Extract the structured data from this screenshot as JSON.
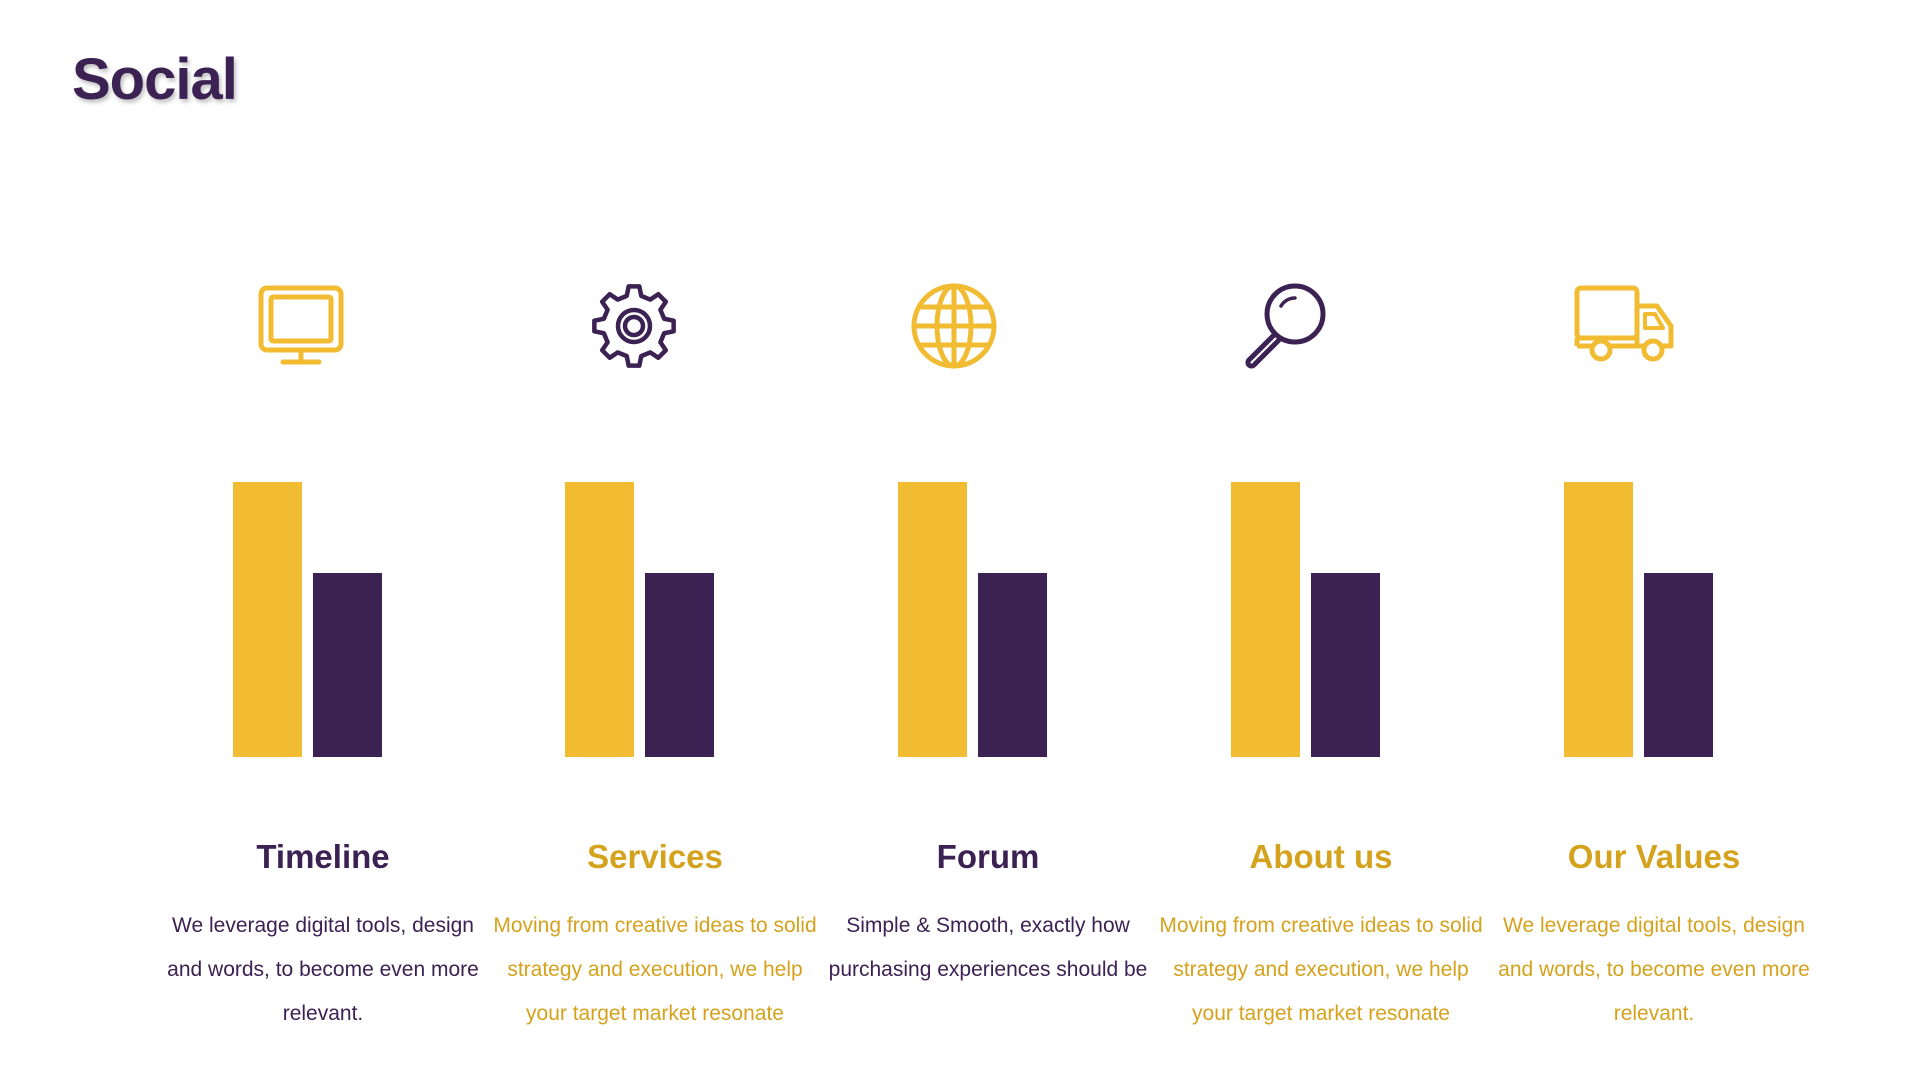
{
  "title": "Social",
  "colors": {
    "gold": "#f1bb32",
    "gold_text": "#d4a21c",
    "purple": "#3c2153"
  },
  "columns": [
    {
      "icon": "monitor-icon",
      "heading": "Timeline",
      "body": "We leverage digital tools, design and words, to become even more relevant.",
      "bar_levels": {
        "gold": 1.0,
        "purple": 0.67
      }
    },
    {
      "icon": "gear-icon",
      "heading": "Services",
      "body": "Moving from creative ideas to solid strategy and execution, we help your target market resonate",
      "bar_levels": {
        "gold": 1.0,
        "purple": 0.67
      }
    },
    {
      "icon": "globe-icon",
      "heading": "Forum",
      "body": "Simple & Smooth, exactly how purchasing experiences should be",
      "bar_levels": {
        "gold": 1.0,
        "purple": 0.67
      }
    },
    {
      "icon": "search-icon",
      "heading": "About us",
      "body": "Moving from creative ideas to solid strategy and execution, we help your target market resonate",
      "bar_levels": {
        "gold": 1.0,
        "purple": 0.67
      }
    },
    {
      "icon": "truck-icon",
      "heading": "Our Values",
      "body": "We leverage digital tools, design and words, to become even more relevant.",
      "bar_levels": {
        "gold": 1.0,
        "purple": 0.67
      }
    }
  ]
}
